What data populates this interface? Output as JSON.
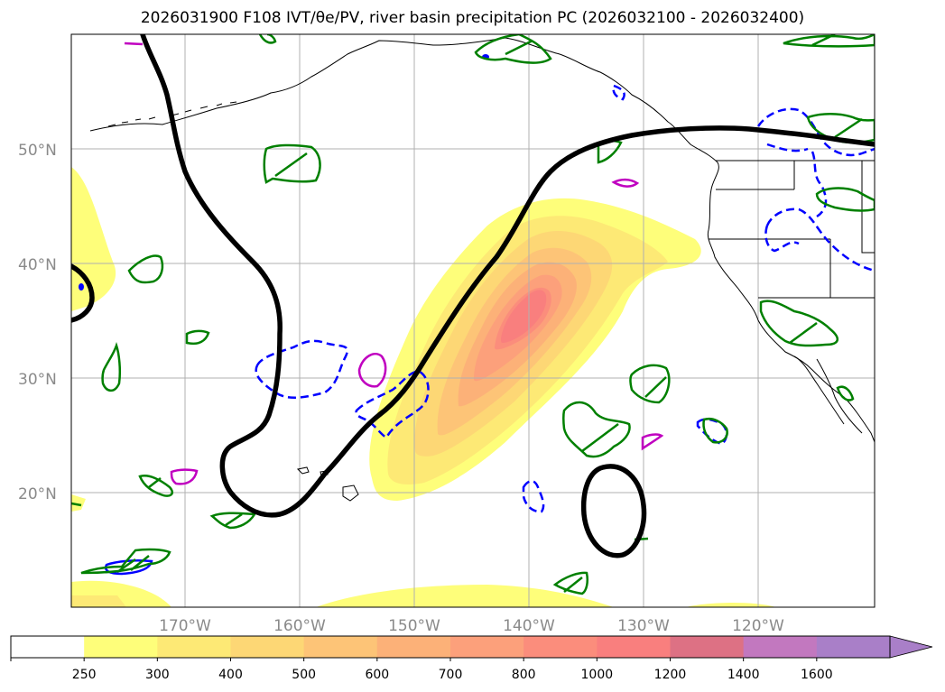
{
  "title": "2026031900 F108 IVT/θe/PV, river basin precipitation PC (2026032100 - 2026032400)",
  "lat_labels": [
    "50°N",
    "40°N",
    "30°N",
    "20°N"
  ],
  "lon_labels": [
    "170°W",
    "160°W",
    "150°W",
    "140°W",
    "130°W",
    "120°W"
  ],
  "colorbar": {
    "levels": [
      "250",
      "300",
      "400",
      "500",
      "600",
      "700",
      "800",
      "1000",
      "1200",
      "1400",
      "1600"
    ],
    "colors": [
      "#ffffff",
      "#fefe7a",
      "#fde975",
      "#fdd775",
      "#fdc477",
      "#fcb178",
      "#fca07b",
      "#fb8d7c",
      "#f97f7e",
      "#dd7184",
      "#c278bf",
      "#a97fc8"
    ]
  },
  "colors": {
    "coast": "#000000",
    "pv_contour": "#000000",
    "theta_e_green": "#008000",
    "blue_dashed": "#0000ff",
    "magenta": "#c000c0",
    "grid": "#b0b0b0"
  }
}
